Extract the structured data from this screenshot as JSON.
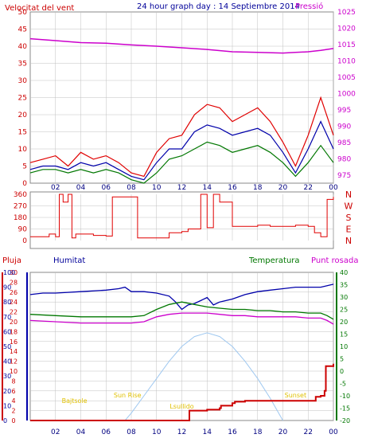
{
  "title": "24 hour graph day : 14 Septiembre 2014",
  "colors": {
    "wind": "#e00000",
    "pressure": "#cc00cc",
    "humidity": "#0000aa",
    "temperature": "#007700",
    "dewpoint": "#cc00cc",
    "rain": "#cc0000",
    "sun": "#9fc8f0",
    "events": "#e0c000",
    "grid": "#c0c0c0"
  },
  "x_ticks": [
    "02",
    "04",
    "06",
    "08",
    "10",
    "12",
    "14",
    "16",
    "18",
    "20",
    "22",
    "00"
  ],
  "chart_data": [
    {
      "type": "line",
      "name": "wind_pressure",
      "left_label": "Velocitat del vent",
      "right_label": "Pressió",
      "left_ticks": [
        "0",
        "5",
        "10",
        "15",
        "20",
        "25",
        "30",
        "35",
        "40",
        "45",
        "50"
      ],
      "right_ticks": [
        "975",
        "980",
        "985",
        "990",
        "995",
        "1000",
        "1005",
        "1010",
        "1015",
        "1020",
        "1025"
      ],
      "ylim_left": [
        0,
        50
      ],
      "ylim_right": [
        972.5,
        1025
      ],
      "xlim": [
        0,
        24
      ],
      "grid": true,
      "pressure": {
        "x": [
          0,
          2,
          4,
          6,
          8,
          10,
          12,
          14,
          16,
          18,
          20,
          21,
          22,
          23,
          24
        ],
        "y": [
          1016.8,
          1016.2,
          1015.6,
          1015.4,
          1014.9,
          1014.5,
          1014.0,
          1013.5,
          1012.8,
          1012.6,
          1012.4,
          1012.6,
          1012.8,
          1013.2,
          1013.8
        ]
      },
      "wind_gust": {
        "x": [
          0,
          1,
          2,
          3,
          4,
          5,
          6,
          7,
          8,
          9,
          10,
          11,
          12,
          13,
          14,
          15,
          16,
          17,
          18,
          19,
          20,
          21,
          22,
          23,
          24
        ],
        "y": [
          6,
          7,
          8,
          5,
          9,
          7,
          8,
          6,
          3,
          2,
          9,
          13,
          14,
          20,
          23,
          22,
          18,
          20,
          22,
          18,
          12,
          5,
          14,
          25,
          14
        ]
      },
      "wind_avg": {
        "x": [
          0,
          1,
          2,
          3,
          4,
          5,
          6,
          7,
          8,
          9,
          10,
          11,
          12,
          13,
          14,
          15,
          16,
          17,
          18,
          19,
          20,
          21,
          22,
          23,
          24
        ],
        "y": [
          4,
          5,
          5,
          4,
          6,
          5,
          6,
          4,
          2,
          1,
          6,
          10,
          10,
          15,
          17,
          16,
          14,
          15,
          16,
          14,
          9,
          3,
          10,
          18,
          10
        ]
      },
      "wind_min": {
        "x": [
          0,
          1,
          2,
          3,
          4,
          5,
          6,
          7,
          8,
          9,
          10,
          11,
          12,
          13,
          14,
          15,
          16,
          17,
          18,
          19,
          20,
          21,
          22,
          23,
          24
        ],
        "y": [
          3,
          4,
          4,
          3,
          4,
          3,
          4,
          3,
          1,
          0,
          3,
          7,
          8,
          10,
          12,
          11,
          9,
          10,
          11,
          9,
          6,
          2,
          6,
          11,
          6
        ]
      }
    },
    {
      "type": "scatter",
      "name": "wind_direction",
      "left_ticks": [
        "0",
        "90",
        "180",
        "270",
        "360"
      ],
      "right_ticks": [
        "N",
        "E",
        "S",
        "W",
        "N"
      ],
      "ylim": [
        0,
        360
      ],
      "xlim": [
        0,
        24
      ],
      "direction": {
        "x": [
          0,
          1,
          1.5,
          2,
          2.3,
          2.6,
          3,
          3.3,
          3.6,
          4,
          5,
          6,
          6.5,
          7,
          7.5,
          8,
          8.5,
          9,
          9.5,
          10,
          11,
          12,
          12.5,
          13,
          13.5,
          14,
          14.5,
          15,
          16,
          17,
          18,
          19,
          20,
          21,
          22,
          22.5,
          23,
          23.5,
          24
        ],
        "y": [
          30,
          30,
          50,
          30,
          360,
          300,
          360,
          20,
          50,
          50,
          40,
          35,
          340,
          340,
          340,
          340,
          20,
          20,
          20,
          20,
          60,
          70,
          90,
          90,
          360,
          100,
          360,
          300,
          110,
          110,
          120,
          110,
          110,
          120,
          110,
          60,
          30,
          320,
          340
        ]
      }
    },
    {
      "type": "line",
      "name": "humidity_temperature_rain",
      "left_label_rain": "Pluja",
      "left_label_humidity": "Humitat",
      "right_label_temp": "Temperatura",
      "right_label_dew": "Punt rosada",
      "rain_ticks": [
        "0",
        "2",
        "4",
        "6",
        "8",
        "10",
        "12",
        "14",
        "16",
        "18",
        "20",
        "22",
        "24",
        "26",
        "28",
        "30"
      ],
      "humidity_ticks": [
        "0",
        "10",
        "20",
        "30",
        "40",
        "50",
        "60",
        "70",
        "80",
        "90",
        "100"
      ],
      "temp_ticks": [
        "-20",
        "-15",
        "-10",
        "-5",
        "0",
        "5",
        "10",
        "15",
        "20",
        "25",
        "30",
        "35",
        "40"
      ],
      "ylim_rain": [
        0,
        30
      ],
      "ylim_humidity": [
        0,
        100
      ],
      "ylim_temp": [
        -20,
        40
      ],
      "xlim": [
        0,
        24
      ],
      "humidity": {
        "x": [
          0,
          1,
          2,
          4,
          6,
          7,
          7.5,
          8,
          9,
          10,
          11,
          11.5,
          12,
          12.5,
          13,
          14,
          14.5,
          15,
          16,
          17,
          18,
          19,
          20,
          21,
          22,
          23,
          23.5,
          24
        ],
        "y": [
          85,
          86,
          86,
          87,
          88,
          89,
          90,
          87,
          87,
          86,
          84,
          80,
          75,
          78,
          79,
          83,
          78,
          80,
          82,
          85,
          87,
          88,
          89,
          90,
          90,
          90,
          91,
          92
        ]
      },
      "temperature": {
        "x": [
          0,
          2,
          4,
          6,
          8,
          9,
          10,
          11,
          12,
          13,
          14,
          15,
          16,
          17,
          18,
          19,
          20,
          21,
          22,
          23,
          23.5,
          24
        ],
        "y": [
          23,
          22.5,
          22,
          22,
          22,
          22.5,
          25,
          27,
          28,
          27,
          26,
          25.5,
          25,
          25,
          24.5,
          24.5,
          24,
          24,
          23.5,
          23.5,
          22.5,
          21
        ]
      },
      "dewpoint": {
        "x": [
          0,
          2,
          4,
          6,
          8,
          9,
          10,
          11,
          12,
          13,
          14,
          15,
          16,
          17,
          18,
          19,
          20,
          21,
          22,
          23,
          23.5,
          24
        ],
        "y": [
          20.5,
          20,
          19.5,
          19.5,
          19.5,
          20,
          22,
          23,
          23.5,
          23.5,
          23.5,
          23,
          22.5,
          22.5,
          22,
          22,
          22,
          22,
          21.5,
          21.5,
          20.5,
          19
        ]
      },
      "rain": {
        "x": [
          0,
          12.5,
          12.6,
          13,
          14,
          15,
          15.1,
          16,
          16.2,
          17,
          18,
          22.5,
          22.6,
          23,
          23.3,
          23.4,
          24
        ],
        "y": [
          0,
          0,
          2,
          2,
          2.2,
          2.5,
          3,
          3.5,
          3.8,
          4,
          4,
          4,
          4.8,
          5,
          6,
          11,
          11.5
        ]
      },
      "sun": {
        "x": [
          7.5,
          8,
          9,
          10,
          11,
          12,
          13,
          14,
          15,
          16,
          17,
          18,
          19,
          20
        ],
        "y": [
          -20,
          -17,
          -10,
          -3,
          4,
          10,
          14,
          15.5,
          14,
          10,
          4,
          -3,
          -11,
          -20
        ]
      },
      "annotations": [
        {
          "text": "Bajtsole",
          "x": 3.5
        },
        {
          "text": "Sun Rise",
          "x": 7.7
        },
        {
          "text": "Lsullido",
          "x": 12
        },
        {
          "text": "Sunset",
          "x": 21
        }
      ]
    }
  ]
}
